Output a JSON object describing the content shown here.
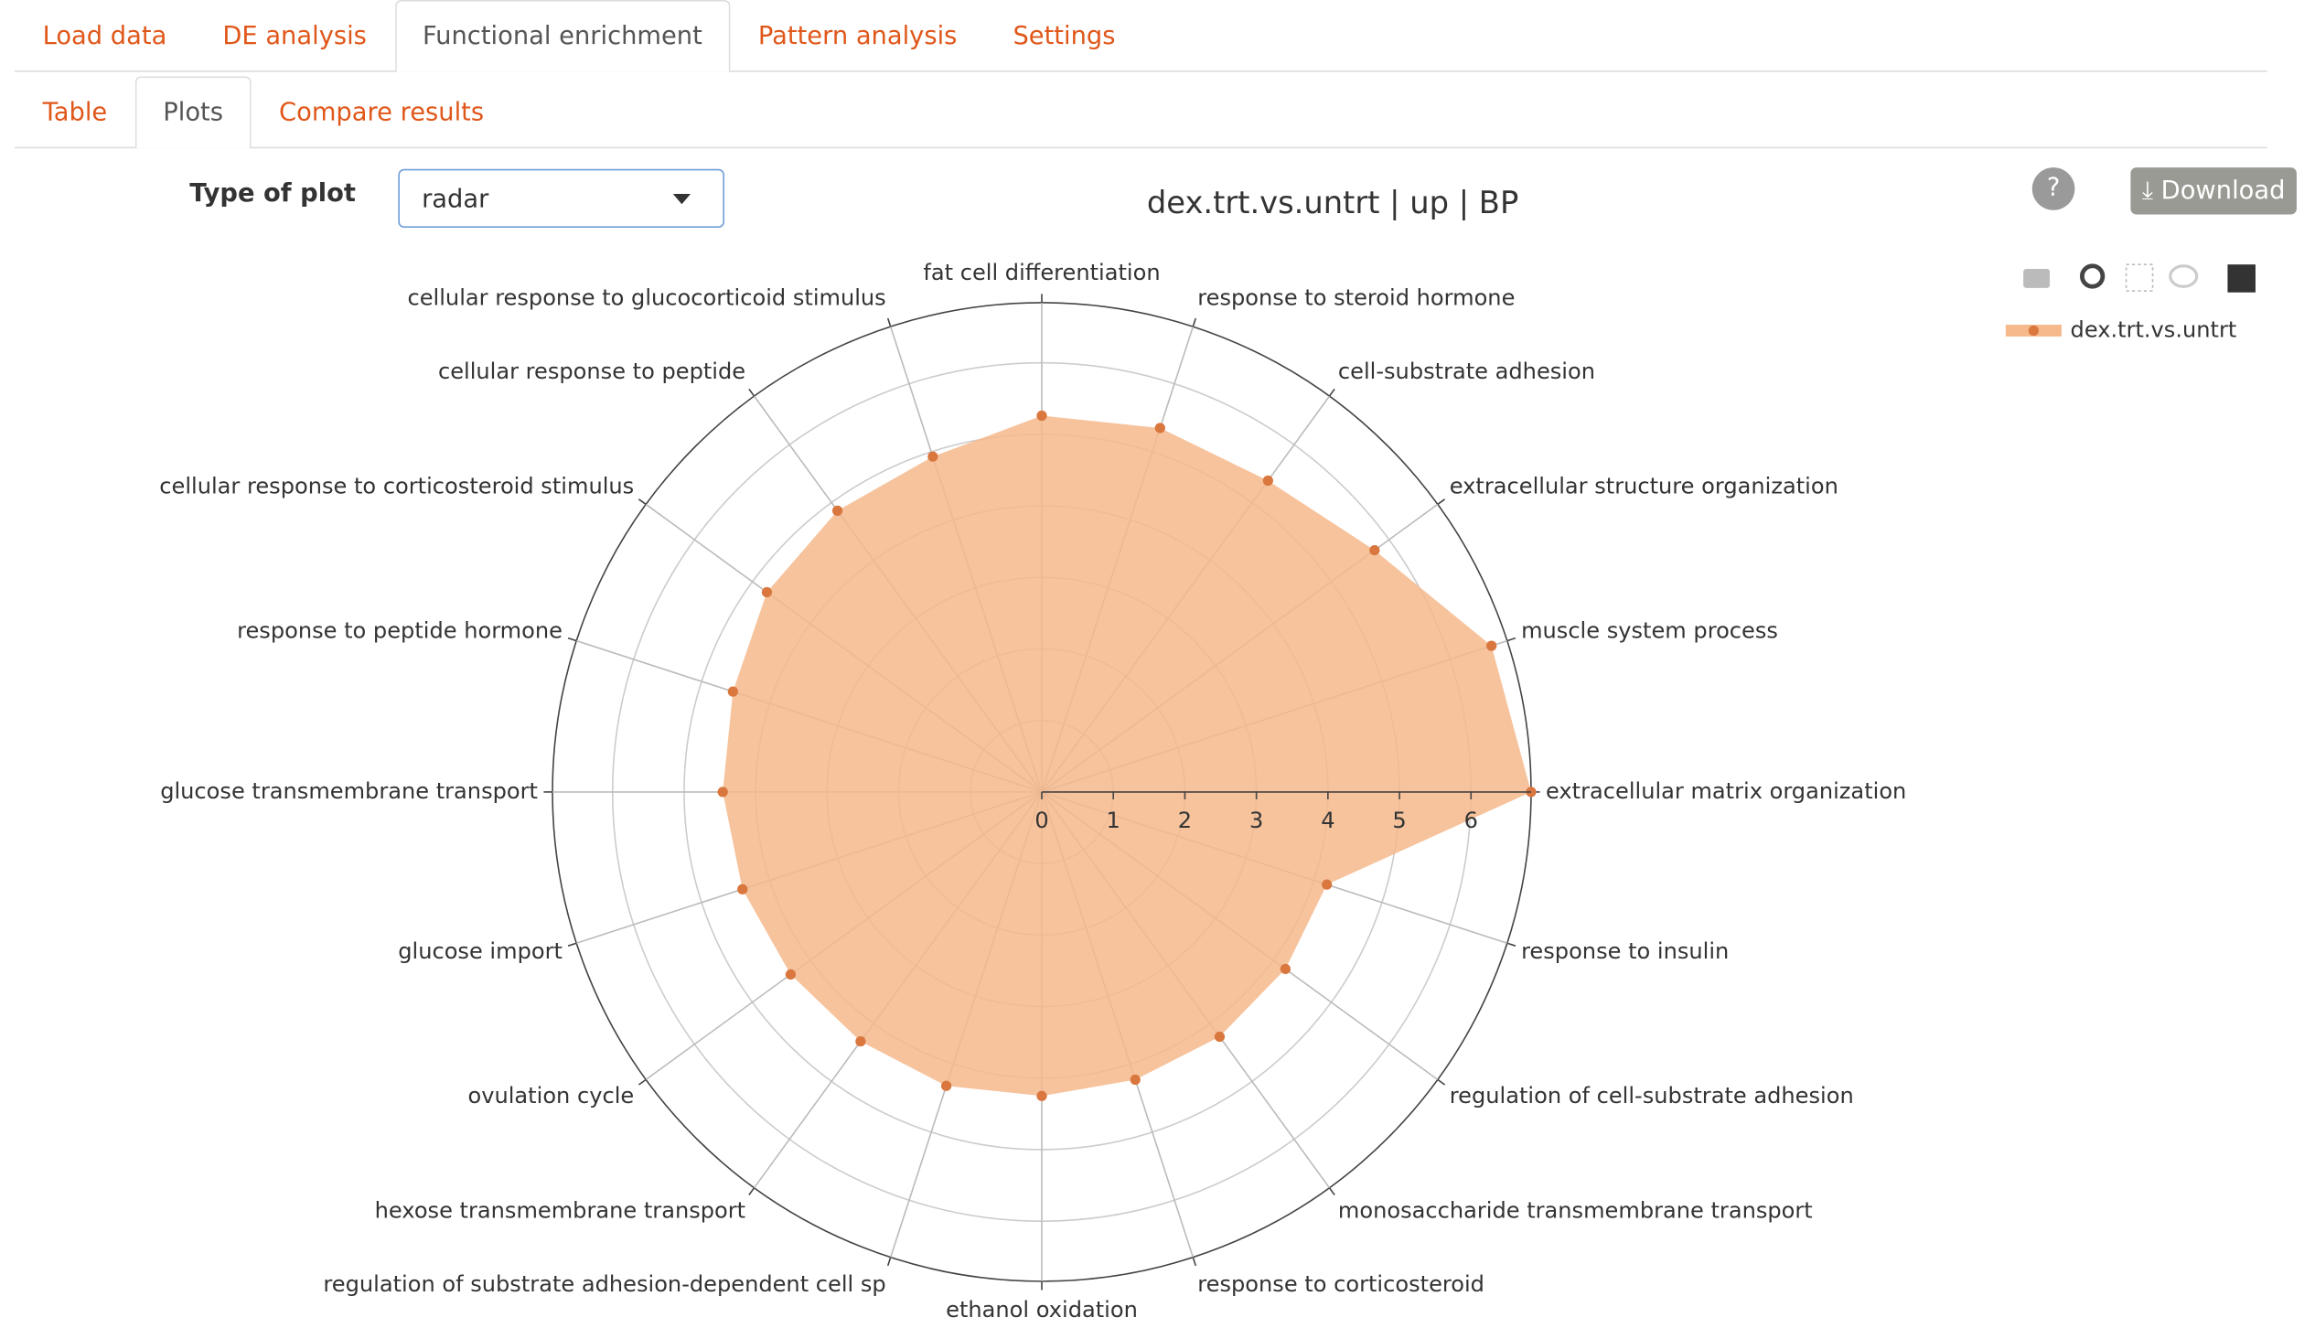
{
  "tabs": [
    "Load data",
    "DE analysis",
    "Functional enrichment",
    "Pattern analysis",
    "Settings"
  ],
  "subtabs": [
    "Table",
    "Plots",
    "Compare results"
  ],
  "controls": {
    "type_label": "Type of plot",
    "type_value": "radar",
    "help": "?",
    "download": "Download"
  },
  "chart_data": {
    "type": "radar",
    "title": "dex.trt.vs.untrt | up | BP",
    "categories": [
      "extracellular matrix organization",
      "muscle system process",
      "extracellular structure organization",
      "cell-substrate adhesion",
      "response to steroid hormone",
      "fat cell differentiation",
      "cellular response to glucocorticoid stimulus",
      "cellular response to peptide",
      "cellular response to corticosteroid stimulus",
      "response to peptide hormone",
      "glucose transmembrane transport",
      "glucose import",
      "ovulation cycle",
      "hexose transmembrane transport",
      "regulation of substrate adhesion-dependent cell sp",
      "ethanol oxidation",
      "response to corticosteroid",
      "monosaccharide transmembrane transport",
      "regulation of cell-substrate adhesion",
      "response to insulin"
    ],
    "series": [
      {
        "name": "dex.trt.vs.untrt",
        "color": "#d9773f",
        "fill": "#f5b98c",
        "values": [
          6.84,
          6.61,
          5.75,
          5.38,
          5.35,
          5.26,
          4.93,
          4.86,
          4.75,
          4.54,
          4.46,
          4.4,
          4.34,
          4.31,
          4.32,
          4.25,
          4.23,
          4.23,
          4.21,
          4.19
        ]
      }
    ],
    "rlim": [
      0,
      6.84
    ],
    "rticks": [
      0,
      1,
      2,
      3,
      4,
      5,
      6
    ],
    "grid": true
  }
}
